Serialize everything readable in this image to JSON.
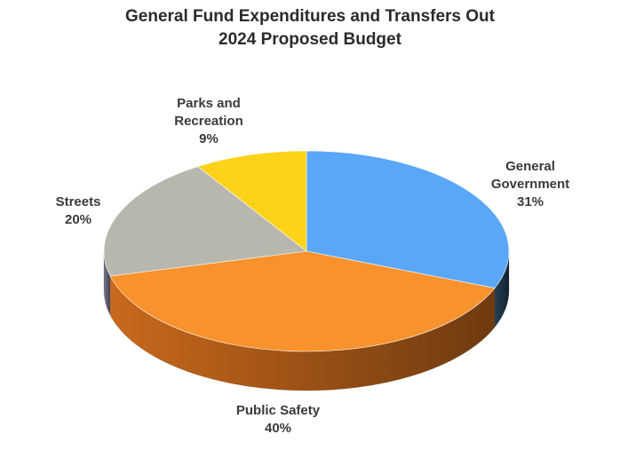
{
  "chart_data": {
    "type": "pie",
    "title": "General Fund Expenditures and Transfers Out",
    "subtitle": "2024 Proposed Budget",
    "slices": [
      {
        "label_lines": [
          "General",
          "Government"
        ],
        "percent_label": "31%",
        "value": 31,
        "color": "#5aa7f7",
        "side_color": "#263e55"
      },
      {
        "label_lines": [
          "Public Safety"
        ],
        "percent_label": "40%",
        "value": 40,
        "color": "#f7922d",
        "side_color": "#c9691c"
      },
      {
        "label_lines": [
          "Streets"
        ],
        "percent_label": "20%",
        "value": 20,
        "color": "#b8b7ad",
        "side_color": "#77778f"
      },
      {
        "label_lines": [
          "Parks and",
          "Recreation"
        ],
        "percent_label": "9%",
        "value": 9,
        "color": "#ffd21a",
        "side_color": "#a08a10"
      }
    ]
  }
}
